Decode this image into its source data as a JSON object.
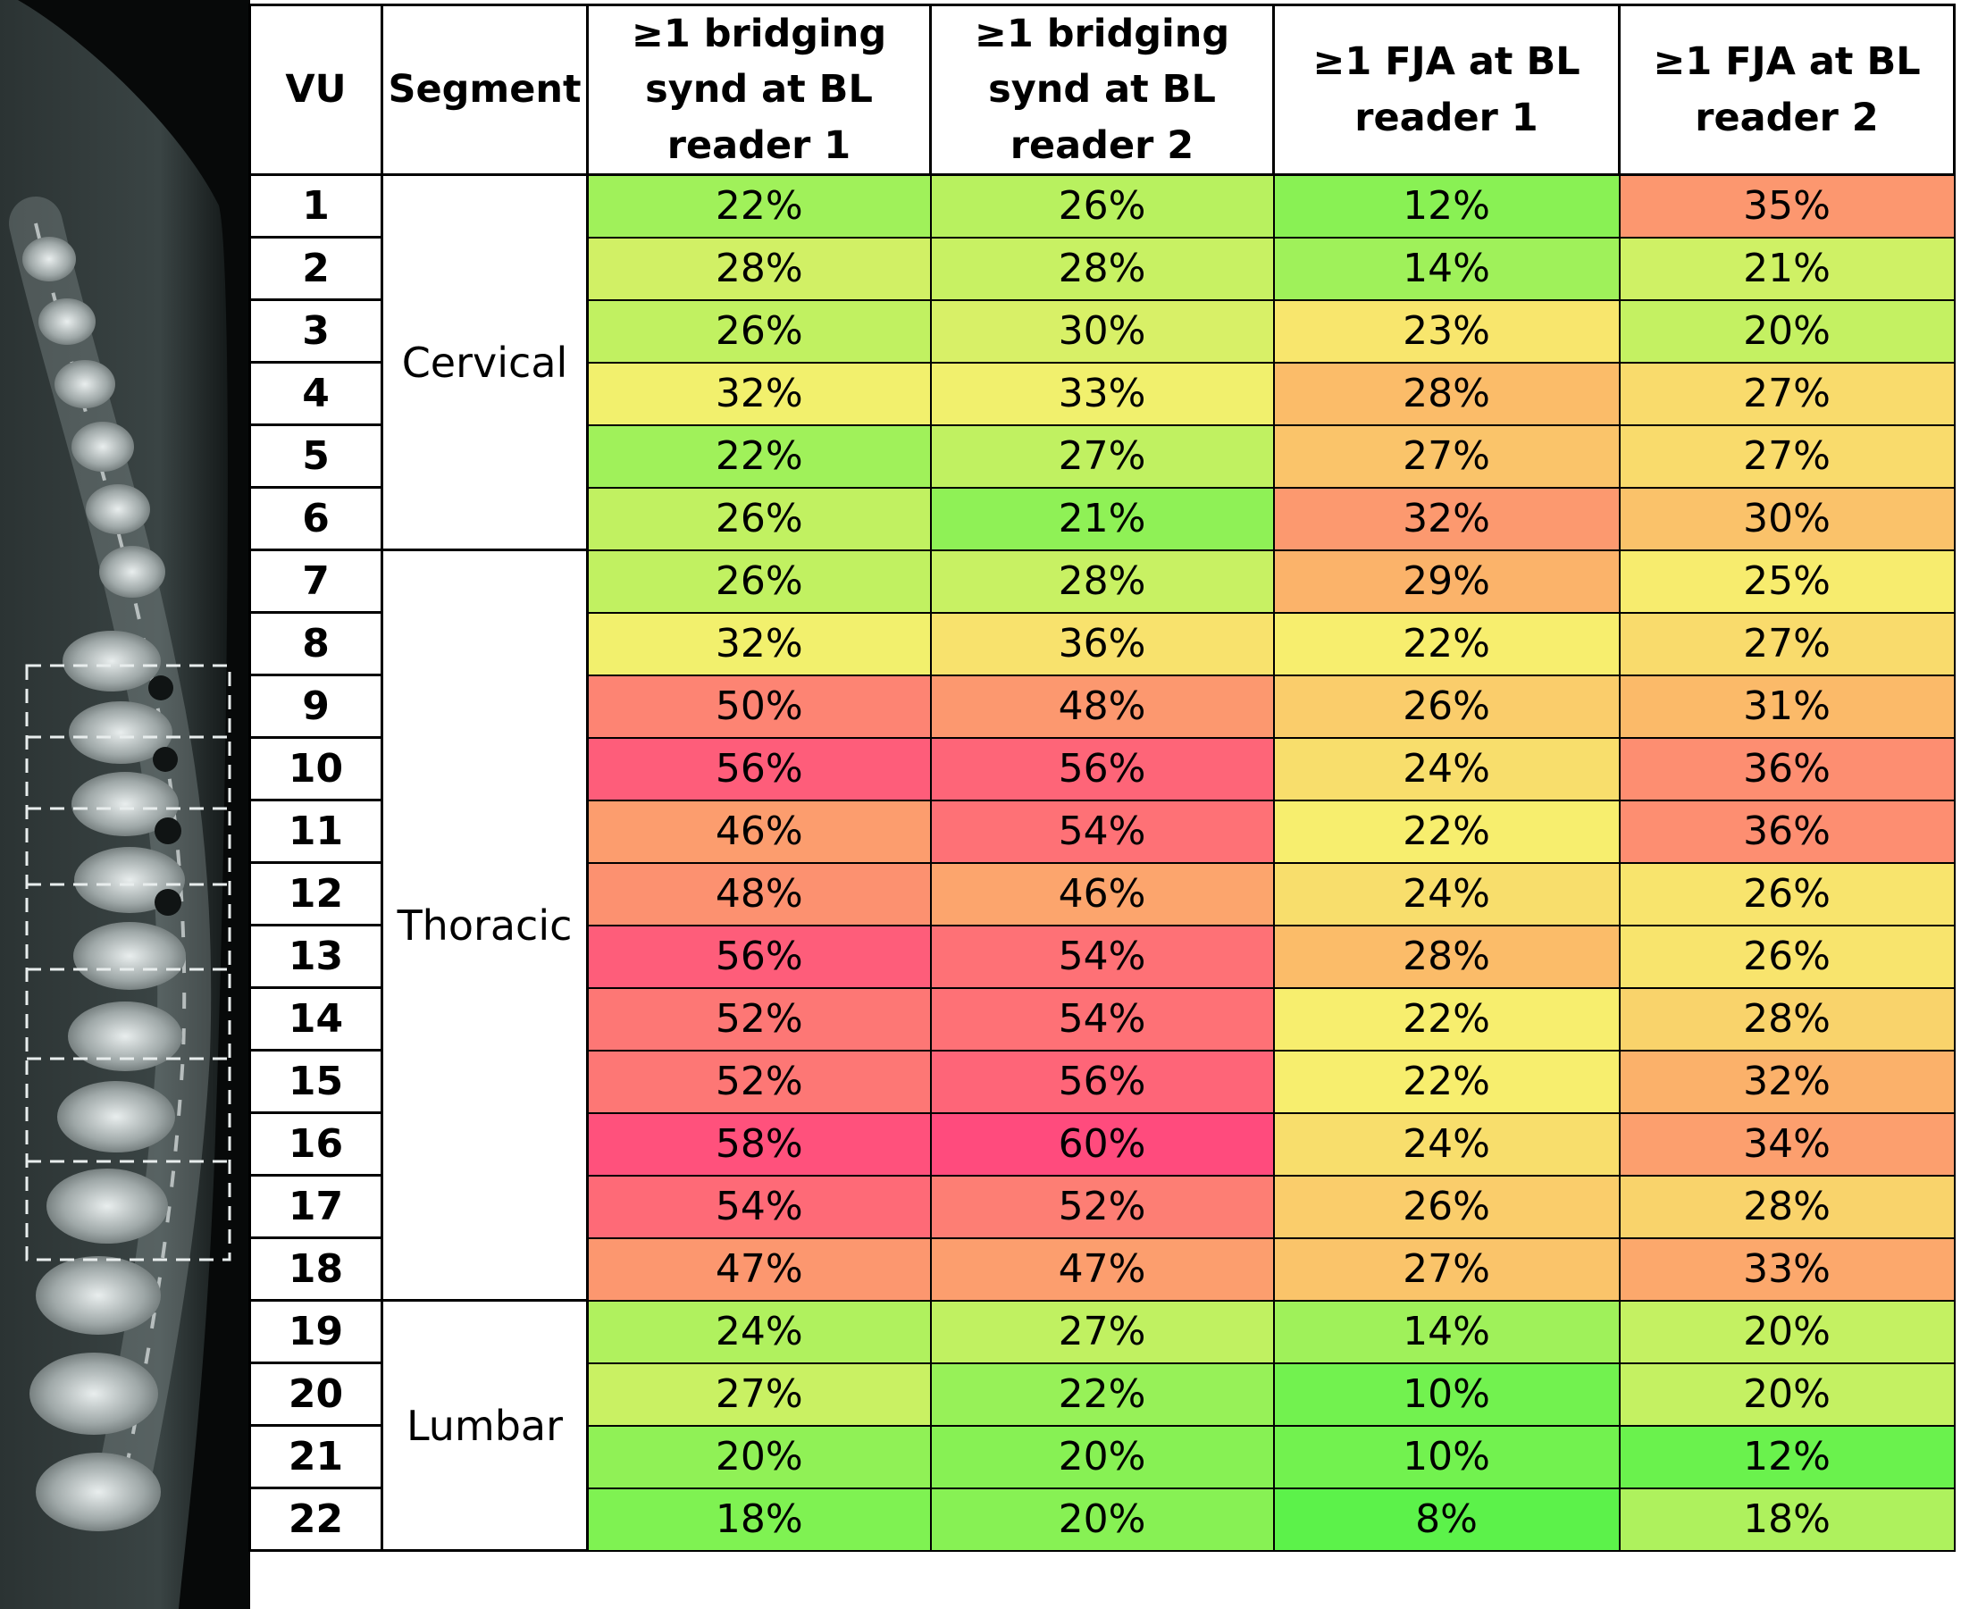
{
  "table": {
    "headers": [
      "VU",
      "Segment",
      "≥1 bridging synd at BL reader 1",
      "≥1 bridging synd at BL reader 2",
      "≥1 FJA at BL reader 1",
      "≥1 FJA at BL reader 2"
    ],
    "segments": [
      {
        "name": "Cervical",
        "span": 6
      },
      {
        "name": "Thoracic",
        "span": 12
      },
      {
        "name": "Lumbar",
        "span": 4
      }
    ],
    "rows": [
      {
        "vu": "1",
        "values": [
          "22%",
          "26%",
          "12%",
          "35%"
        ]
      },
      {
        "vu": "2",
        "values": [
          "28%",
          "28%",
          "14%",
          "21%"
        ]
      },
      {
        "vu": "3",
        "values": [
          "26%",
          "30%",
          "23%",
          "20%"
        ]
      },
      {
        "vu": "4",
        "values": [
          "32%",
          "33%",
          "28%",
          "27%"
        ]
      },
      {
        "vu": "5",
        "values": [
          "22%",
          "27%",
          "27%",
          "27%"
        ]
      },
      {
        "vu": "6",
        "values": [
          "26%",
          "21%",
          "32%",
          "30%"
        ]
      },
      {
        "vu": "7",
        "values": [
          "26%",
          "28%",
          "29%",
          "25%"
        ]
      },
      {
        "vu": "8",
        "values": [
          "32%",
          "36%",
          "22%",
          "27%"
        ]
      },
      {
        "vu": "9",
        "values": [
          "50%",
          "48%",
          "26%",
          "31%"
        ]
      },
      {
        "vu": "10",
        "values": [
          "56%",
          "56%",
          "24%",
          "36%"
        ]
      },
      {
        "vu": "11",
        "values": [
          "46%",
          "54%",
          "22%",
          "36%"
        ]
      },
      {
        "vu": "12",
        "values": [
          "48%",
          "46%",
          "24%",
          "26%"
        ]
      },
      {
        "vu": "13",
        "values": [
          "56%",
          "54%",
          "28%",
          "26%"
        ]
      },
      {
        "vu": "14",
        "values": [
          "52%",
          "54%",
          "22%",
          "28%"
        ]
      },
      {
        "vu": "15",
        "values": [
          "52%",
          "56%",
          "22%",
          "32%"
        ]
      },
      {
        "vu": "16",
        "values": [
          "58%",
          "60%",
          "24%",
          "34%"
        ]
      },
      {
        "vu": "17",
        "values": [
          "54%",
          "52%",
          "26%",
          "28%"
        ]
      },
      {
        "vu": "18",
        "values": [
          "47%",
          "47%",
          "27%",
          "33%"
        ]
      },
      {
        "vu": "19",
        "values": [
          "24%",
          "27%",
          "14%",
          "20%"
        ]
      },
      {
        "vu": "20",
        "values": [
          "27%",
          "22%",
          "10%",
          "20%"
        ]
      },
      {
        "vu": "21",
        "values": [
          "20%",
          "20%",
          "10%",
          "12%"
        ]
      },
      {
        "vu": "22",
        "values": [
          "18%",
          "20%",
          "8%",
          "18%"
        ]
      }
    ]
  },
  "chart_data": {
    "type": "heatmap",
    "x": [
      "≥1 bridging synd at BL reader 1",
      "≥1 bridging synd at BL reader 2",
      "≥1 FJA at BL reader 1",
      "≥1 FJA at BL reader 2"
    ],
    "y": [
      "1",
      "2",
      "3",
      "4",
      "5",
      "6",
      "7",
      "8",
      "9",
      "10",
      "11",
      "12",
      "13",
      "14",
      "15",
      "16",
      "17",
      "18",
      "19",
      "20",
      "21",
      "22"
    ],
    "values": [
      [
        22,
        26,
        12,
        35
      ],
      [
        28,
        28,
        14,
        21
      ],
      [
        26,
        30,
        23,
        20
      ],
      [
        32,
        33,
        28,
        27
      ],
      [
        22,
        27,
        27,
        27
      ],
      [
        26,
        21,
        32,
        30
      ],
      [
        26,
        28,
        29,
        25
      ],
      [
        32,
        36,
        22,
        27
      ],
      [
        50,
        48,
        26,
        31
      ],
      [
        56,
        56,
        24,
        36
      ],
      [
        46,
        54,
        22,
        36
      ],
      [
        48,
        46,
        24,
        26
      ],
      [
        56,
        54,
        28,
        26
      ],
      [
        52,
        54,
        22,
        28
      ],
      [
        52,
        56,
        22,
        32
      ],
      [
        58,
        60,
        24,
        34
      ],
      [
        54,
        52,
        26,
        28
      ],
      [
        47,
        47,
        27,
        33
      ],
      [
        24,
        27,
        14,
        20
      ],
      [
        27,
        22,
        10,
        20
      ],
      [
        20,
        20,
        10,
        12
      ],
      [
        18,
        20,
        8,
        18
      ]
    ],
    "color_scale": {
      "low": "#5cf24a",
      "mid": "#f7f06e",
      "high_mid": "#fbb969",
      "high": "#ff4b7d"
    }
  }
}
